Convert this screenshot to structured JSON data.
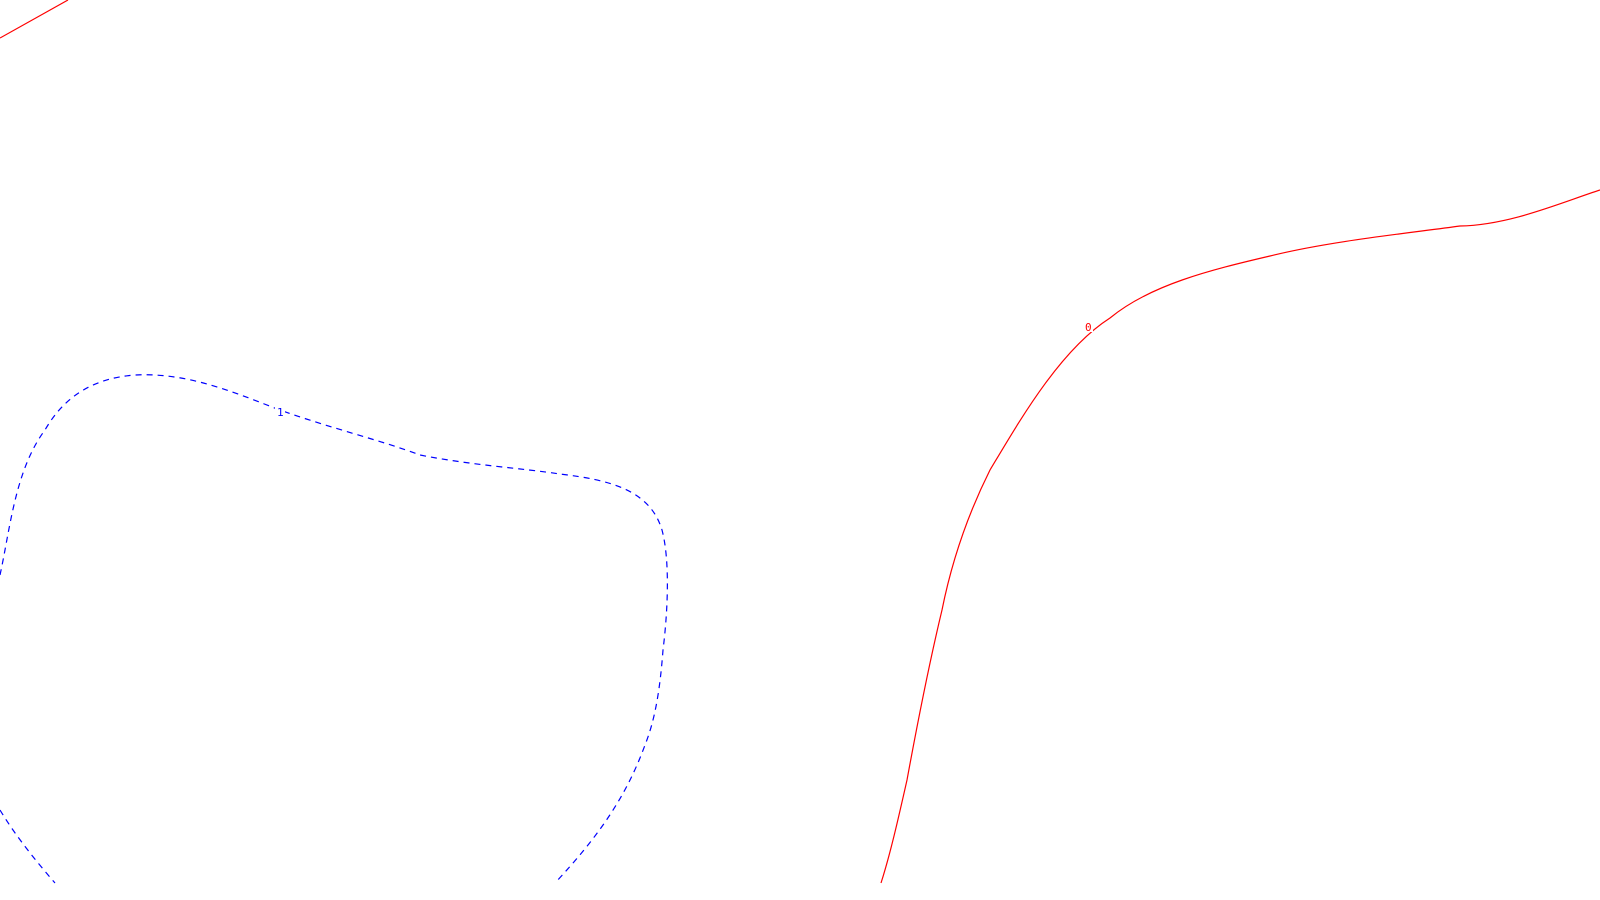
{
  "map": {
    "type": "contour-plot",
    "background_color": "#ffffff",
    "contours": [
      {
        "level": 0,
        "label": "0",
        "color": "#ff0000",
        "style": "solid"
      },
      {
        "level": 1,
        "label": "1",
        "color": "#0000ff",
        "style": "dashed"
      }
    ]
  }
}
